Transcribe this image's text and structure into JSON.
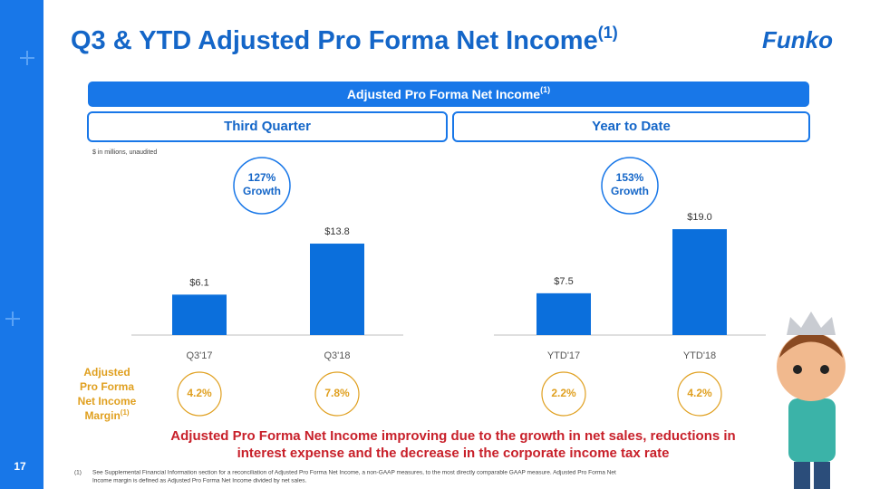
{
  "title": "Q3 & YTD Adjusted Pro Forma Net Income",
  "title_sup": "(1)",
  "logo": "Funko",
  "banner": "Adjusted Pro Forma Net Income",
  "banner_sup": "(1)",
  "units_note": "$ in millions, unaudited",
  "margin_label": [
    "Adjusted",
    "Pro Forma",
    "Net Income",
    "Margin"
  ],
  "margin_label_sup": "(1)",
  "chart_data": [
    {
      "type": "bar",
      "title": "Third Quarter",
      "categories": [
        "Q3'17",
        "Q3'18"
      ],
      "values": [
        6.1,
        13.8
      ],
      "value_labels": [
        "$6.1",
        "$13.8"
      ],
      "color": "#0b6fdc",
      "ylim": [
        0,
        16.4
      ],
      "growth_lines": [
        "127%",
        "Growth"
      ],
      "margin_labels": [
        "4.2%",
        "7.8%"
      ]
    },
    {
      "type": "bar",
      "title": "Year to Date",
      "categories": [
        "YTD'17",
        "YTD'18"
      ],
      "values": [
        7.5,
        19.0
      ],
      "value_labels": [
        "$7.5",
        "$19.0"
      ],
      "color": "#0b6fdc",
      "ylim": [
        0,
        19.5
      ],
      "growth_lines": [
        "153%",
        "Growth"
      ],
      "margin_labels": [
        "2.2%",
        "4.2%"
      ]
    }
  ],
  "statement": [
    "Adjusted Pro Forma Net Income improving due to the growth in net sales, reductions in",
    "interest expense and the decrease in the corporate income tax rate"
  ],
  "footnote_marker": "(1)",
  "footnote": [
    "See Supplemental Financial Information section for a reconciliation of Adjusted Pro Forma Net Income, a non-GAAP measures, to the most directly comparable GAAP measure. Adjusted Pro Forma Net",
    "Income margin is defined as Adjusted Pro Forma Net Income divided by net sales."
  ],
  "page_number": "17"
}
